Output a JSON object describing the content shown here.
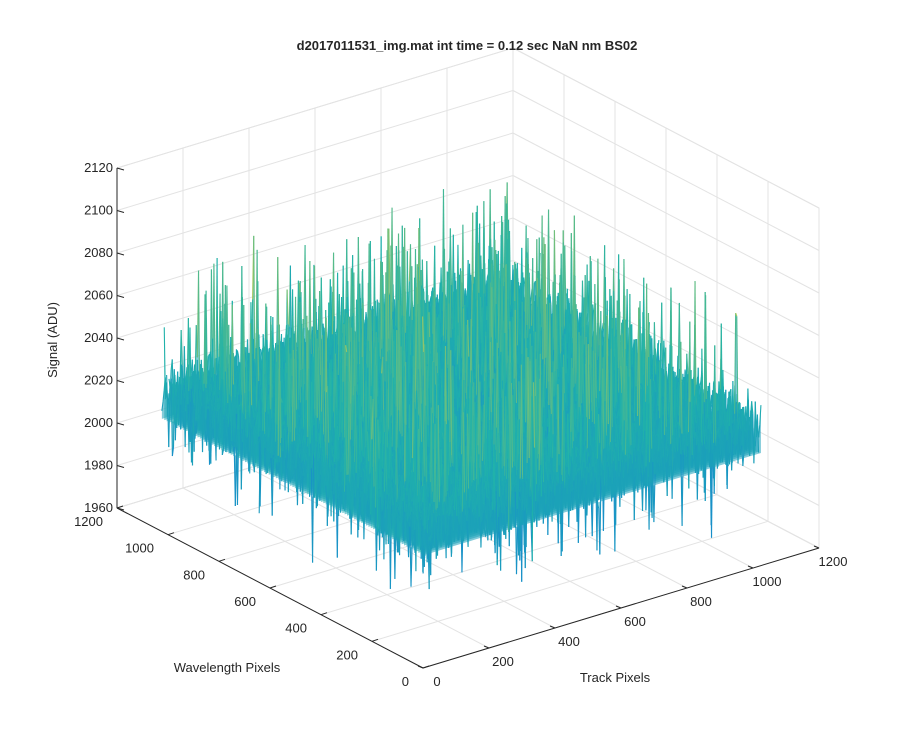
{
  "chart_data": {
    "type": "surface",
    "title": "d2017011531_img.mat int time = 0.12 sec  NaN nm BS02",
    "xlabel": "Track Pixels",
    "ylabel": "Wavelength Pixels",
    "zlabel": "Signal (ADU)",
    "xlim": [
      0,
      1200
    ],
    "ylim": [
      0,
      1200
    ],
    "zlim": [
      1960,
      2120
    ],
    "xticks": [
      "0",
      "200",
      "400",
      "600",
      "800",
      "1000",
      "1200"
    ],
    "yticks": [
      "0",
      "200",
      "400",
      "600",
      "800",
      "1000",
      "1200"
    ],
    "zticks": [
      "1960",
      "1980",
      "2000",
      "2020",
      "2040",
      "2060",
      "2080",
      "2100",
      "2120"
    ],
    "grid": true,
    "colormap": "parula",
    "surface_summary": {
      "data_extent_x": [
        0,
        1024
      ],
      "data_extent_y": [
        0,
        1024
      ],
      "mean_signal": 2025,
      "noise_range": [
        1975,
        2110
      ],
      "peak_signal": 2112,
      "min_signal": 1970
    },
    "colors": {
      "low": "#1a8fd4",
      "mid": "#22b4a8",
      "high": "#d8d040"
    }
  }
}
